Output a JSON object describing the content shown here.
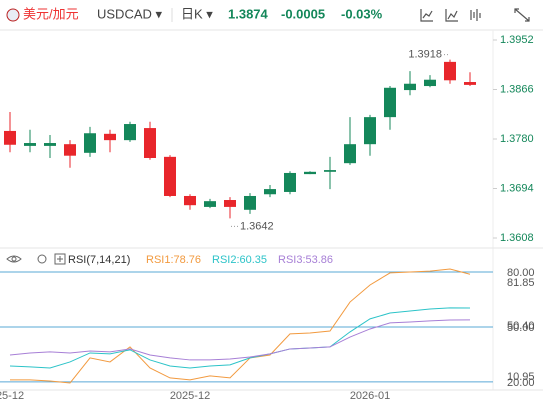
{
  "header": {
    "pair": "美元/加元",
    "symbol": "USDCAD ▾",
    "period": "日K ▾",
    "price": "1.3874",
    "change": "-0.0005",
    "change_pct": "-0.03%"
  },
  "chart_data": {
    "type": "candlestick",
    "categories": [
      "25-12",
      null,
      null,
      null,
      null,
      null,
      null,
      null,
      null,
      "2025-12",
      null,
      null,
      null,
      null,
      null,
      null,
      null,
      null,
      "2026-01",
      null,
      null,
      null,
      null,
      null
    ],
    "open": [
      1.3794,
      1.3768,
      1.3768,
      1.3771,
      1.3756,
      1.3789,
      1.3778,
      1.3799,
      1.3749,
      1.3681,
      1.3662,
      1.3674,
      1.3657,
      1.3684,
      1.3688,
      1.3719,
      1.3723,
      1.3738,
      1.3771,
      1.3818,
      1.3865,
      1.3872,
      1.3914,
      1.3879
    ],
    "high": [
      1.3827,
      1.3796,
      1.3787,
      1.3778,
      1.3801,
      1.3796,
      1.381,
      1.381,
      1.3752,
      1.3684,
      1.3676,
      1.3679,
      1.3686,
      1.37,
      1.3724,
      1.3724,
      1.3749,
      1.3818,
      1.3822,
      1.3872,
      1.3898,
      1.3891,
      1.3918,
      1.3896
    ],
    "low": [
      1.3757,
      1.3757,
      1.3747,
      1.373,
      1.3749,
      1.3757,
      1.3775,
      1.3744,
      1.3679,
      1.3657,
      1.366,
      1.3642,
      1.365,
      1.3679,
      1.3684,
      1.3719,
      1.3693,
      1.3735,
      1.3751,
      1.3796,
      1.3856,
      1.387,
      1.3876,
      1.3872
    ],
    "close": [
      1.377,
      1.3773,
      1.3773,
      1.3751,
      1.379,
      1.3778,
      1.3806,
      1.3747,
      1.3681,
      1.3665,
      1.3672,
      1.3662,
      1.3681,
      1.3693,
      1.3721,
      1.3723,
      1.3726,
      1.3771,
      1.3818,
      1.3869,
      1.3876,
      1.3883,
      1.3882,
      1.3874
    ],
    "up_color": "#14875a",
    "down_color": "#e8262b",
    "ylim": [
      1.3608,
      1.3952
    ],
    "yticks": [
      1.3952,
      1.3866,
      {
        "value": 1.378,
        "label": "1.3780"
      },
      1.3694,
      1.3608
    ],
    "annotations": [
      {
        "value": 1.3918,
        "label": "1.3918",
        "index": 22
      },
      {
        "value": 1.3642,
        "label": "1.3642",
        "index": 11
      }
    ],
    "indicator": {
      "name": "RSI(7,14,21)",
      "ylim": [
        14.5,
        92
      ],
      "yticks": [
        {
          "value": 80,
          "label": "80.00"
        },
        {
          "value": 50,
          "label": "50.00"
        },
        {
          "value": 20,
          "label": "20.00"
        }
      ],
      "extra_labels": [
        "81.85",
        "50.40",
        "10.95"
      ],
      "line_color": "#5aa9d6",
      "series": [
        {
          "name": "RSI1:78.76",
          "color": "#f29a3f",
          "values": [
            21.1,
            21.1,
            20.5,
            19.4,
            33.1,
            30.9,
            39.1,
            27.6,
            22.2,
            21.1,
            23.3,
            22.2,
            33.1,
            34.7,
            46.2,
            46.7,
            47.8,
            63.6,
            72.9,
            79.5,
            80.0,
            80.5,
            81.6,
            78.76
          ]
        },
        {
          "name": "RSI2:60.35",
          "color": "#2cc3c8",
          "values": [
            28.7,
            28.2,
            27.6,
            30.9,
            35.8,
            35.3,
            37.5,
            32.0,
            28.7,
            27.6,
            28.7,
            29.3,
            33.1,
            35.3,
            38.0,
            38.5,
            39.1,
            47.3,
            54.4,
            57.6,
            58.7,
            59.8,
            60.4,
            60.35
          ]
        },
        {
          "name": "RSI3:53.86",
          "color": "#a77fd6",
          "values": [
            34.7,
            35.8,
            36.4,
            35.8,
            36.9,
            36.4,
            38.0,
            34.7,
            33.1,
            32.0,
            32.0,
            32.5,
            33.6,
            35.3,
            38.0,
            38.5,
            39.1,
            44.5,
            48.9,
            52.2,
            52.7,
            53.3,
            53.8,
            53.86
          ]
        }
      ]
    }
  }
}
